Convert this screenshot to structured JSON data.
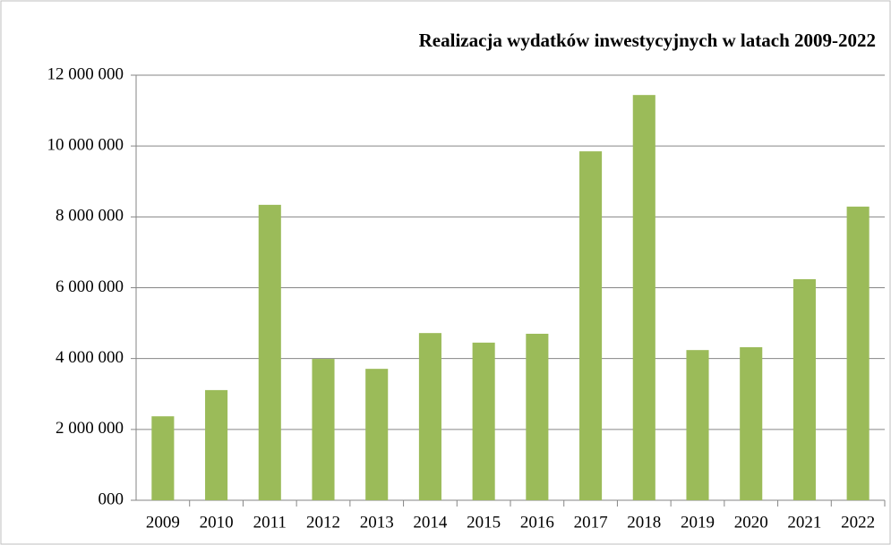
{
  "chart_data": {
    "type": "bar",
    "title": "Realizacja wydatków inwestycyjnych w latach 2009-2022",
    "categories": [
      "2009",
      "2010",
      "2011",
      "2012",
      "2013",
      "2014",
      "2015",
      "2016",
      "2017",
      "2018",
      "2019",
      "2020",
      "2021",
      "2022"
    ],
    "values": [
      2370000,
      3110000,
      8340000,
      3990000,
      3710000,
      4720000,
      4450000,
      4700000,
      9850000,
      11440000,
      4240000,
      4320000,
      6240000,
      8290000
    ],
    "color": "#9bbb59",
    "ylim": [
      0,
      12000000
    ],
    "yticks": [
      {
        "value": 0,
        "label": "000"
      },
      {
        "value": 2000000,
        "label": "2 000 000"
      },
      {
        "value": 4000000,
        "label": "4 000 000"
      },
      {
        "value": 6000000,
        "label": "6 000 000"
      },
      {
        "value": 8000000,
        "label": "8 000 000"
      },
      {
        "value": 10000000,
        "label": "10 000 000"
      },
      {
        "value": 12000000,
        "label": "12 000 000"
      }
    ],
    "grid": true
  }
}
